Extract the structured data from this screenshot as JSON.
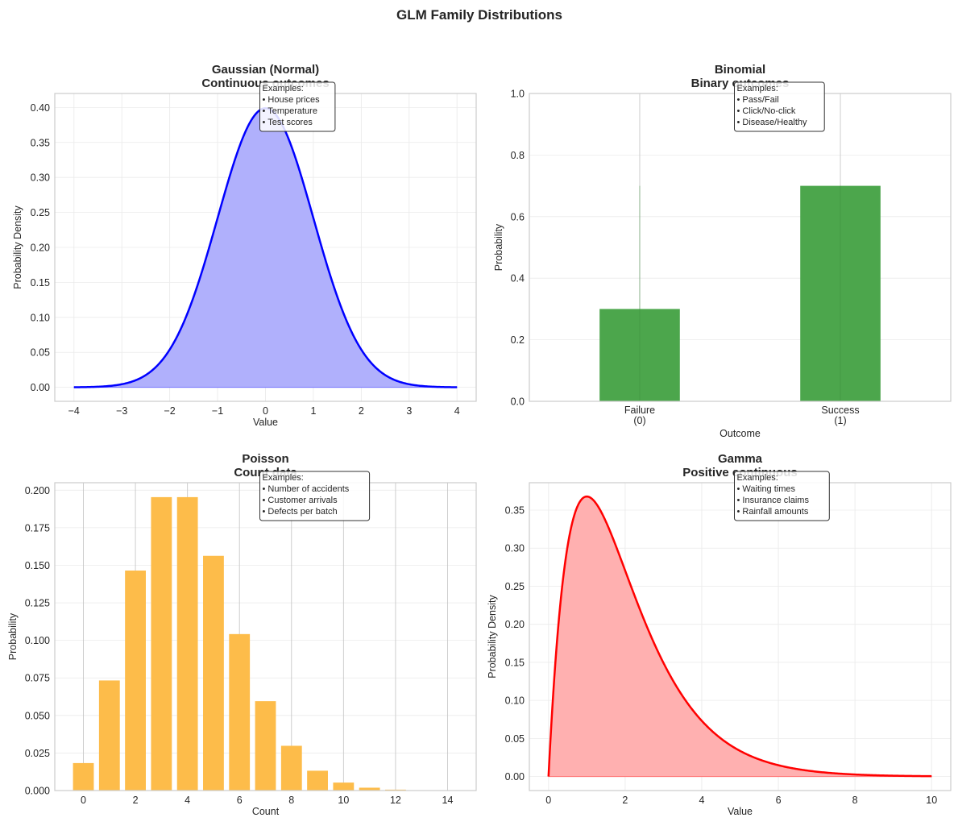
{
  "suptitle": "GLM Family Distributions",
  "chart_data": [
    {
      "id": "gaussian",
      "type": "area",
      "title": "Gaussian (Normal)\nContinuous outcomes",
      "title_lines": [
        "Gaussian (Normal)",
        "Continuous outcomes"
      ],
      "xlabel": "Value",
      "ylabel": "Probability Density",
      "xlim": [
        -4.4,
        4.4
      ],
      "ylim": [
        -0.02,
        0.42
      ],
      "xticks": [
        -4,
        -3,
        -2,
        -1,
        0,
        1,
        2,
        3,
        4
      ],
      "xtick_labels": [
        "−4",
        "−3",
        "−2",
        "−1",
        "0",
        "1",
        "2",
        "3",
        "4"
      ],
      "yticks": [
        0.0,
        0.05,
        0.1,
        0.15,
        0.2,
        0.25,
        0.3,
        0.35,
        0.4
      ],
      "ytick_labels": [
        "0.00",
        "0.05",
        "0.10",
        "0.15",
        "0.20",
        "0.25",
        "0.30",
        "0.35",
        "0.40"
      ],
      "distribution": {
        "name": "normal",
        "mean": 0,
        "sd": 1,
        "x_range": [
          -4,
          4
        ]
      },
      "x": [
        -4,
        -3.5,
        -3,
        -2.5,
        -2,
        -1.5,
        -1,
        -0.5,
        0,
        0.5,
        1,
        1.5,
        2,
        2.5,
        3,
        3.5,
        4
      ],
      "y": [
        0.0001,
        0.0009,
        0.0044,
        0.0175,
        0.054,
        0.1295,
        0.242,
        0.3521,
        0.3989,
        0.3521,
        0.242,
        0.1295,
        0.054,
        0.0175,
        0.0044,
        0.0009,
        0.0001
      ],
      "line_color": "#0000ff",
      "fill_color": "#b0b0fc",
      "annotation": [
        "Examples:",
        "• House prices",
        "• Temperature",
        "• Test scores"
      ],
      "grid": true
    },
    {
      "id": "binomial",
      "type": "bar",
      "title_lines": [
        "Binomial",
        "Binary outcomes"
      ],
      "xlabel": "Outcome",
      "ylabel": "Probability",
      "categories": [
        "Failure\n(0)",
        "Success\n(1)"
      ],
      "category_lines": [
        [
          "Failure",
          "(0)"
        ],
        [
          "Success",
          "(1)"
        ]
      ],
      "values": [
        0.3,
        0.7
      ],
      "ylim": [
        0,
        1.0
      ],
      "yticks": [
        0.0,
        0.2,
        0.4,
        0.6,
        0.8,
        1.0
      ],
      "ytick_labels": [
        "0.0",
        "0.2",
        "0.4",
        "0.6",
        "0.8",
        "1.0"
      ],
      "bar_color": "#4ca64c",
      "annotation": [
        "Examples:",
        "• Pass/Fail",
        "• Click/No-click",
        "• Disease/Healthy"
      ],
      "grid": true
    },
    {
      "id": "poisson",
      "type": "bar",
      "title_lines": [
        "Poisson",
        "Count data"
      ],
      "xlabel": "Count",
      "ylabel": "Probability",
      "distribution": {
        "name": "poisson",
        "lambda": 4
      },
      "categories": [
        0,
        1,
        2,
        3,
        4,
        5,
        6,
        7,
        8,
        9,
        10,
        11,
        12,
        13,
        14
      ],
      "values": [
        0.0183,
        0.0733,
        0.1465,
        0.1954,
        0.1954,
        0.1563,
        0.1042,
        0.0595,
        0.0298,
        0.0132,
        0.0053,
        0.0019,
        0.0006,
        0.0002,
        0.0001
      ],
      "xlim": [
        -1.1,
        15.1
      ],
      "ylim": [
        0,
        0.205
      ],
      "xticks": [
        0,
        2,
        4,
        6,
        8,
        10,
        12,
        14
      ],
      "xtick_labels": [
        "0",
        "2",
        "4",
        "6",
        "8",
        "10",
        "12",
        "14"
      ],
      "yticks": [
        0,
        0.025,
        0.05,
        0.075,
        0.1,
        0.125,
        0.15,
        0.175,
        0.2
      ],
      "ytick_labels": [
        "0.000",
        "0.025",
        "0.050",
        "0.075",
        "0.100",
        "0.125",
        "0.150",
        "0.175",
        "0.200"
      ],
      "bar_color": "#fdbc4a",
      "annotation": [
        "Examples:",
        "• Number of accidents",
        "• Customer arrivals",
        "• Defects per batch"
      ],
      "grid": true
    },
    {
      "id": "gamma",
      "type": "area",
      "title_lines": [
        "Gamma",
        "Positive continuous"
      ],
      "xlabel": "Value",
      "ylabel": "Probability Density",
      "distribution": {
        "name": "gamma",
        "shape": 2,
        "scale": 1,
        "x_range": [
          0,
          10
        ]
      },
      "x": [
        0,
        0.5,
        1,
        1.5,
        2,
        3,
        4,
        5,
        6,
        7,
        8,
        9,
        10
      ],
      "y": [
        0,
        0.3033,
        0.3679,
        0.3347,
        0.2707,
        0.1494,
        0.0733,
        0.0337,
        0.0149,
        0.0064,
        0.0027,
        0.0011,
        0.0005
      ],
      "xlim": [
        -0.5,
        10.5
      ],
      "ylim": [
        -0.0184,
        0.386
      ],
      "xticks": [
        0,
        2,
        4,
        6,
        8,
        10
      ],
      "xtick_labels": [
        "0",
        "2",
        "4",
        "6",
        "8",
        "10"
      ],
      "yticks": [
        0,
        0.05,
        0.1,
        0.15,
        0.2,
        0.25,
        0.3,
        0.35
      ],
      "ytick_labels": [
        "0.00",
        "0.05",
        "0.10",
        "0.15",
        "0.20",
        "0.25",
        "0.30",
        "0.35"
      ],
      "line_color": "#ff0000",
      "fill_color": "#ffb0b0",
      "annotation": [
        "Examples:",
        "• Waiting times",
        "• Insurance claims",
        "• Rainfall amounts"
      ],
      "grid": true
    }
  ]
}
